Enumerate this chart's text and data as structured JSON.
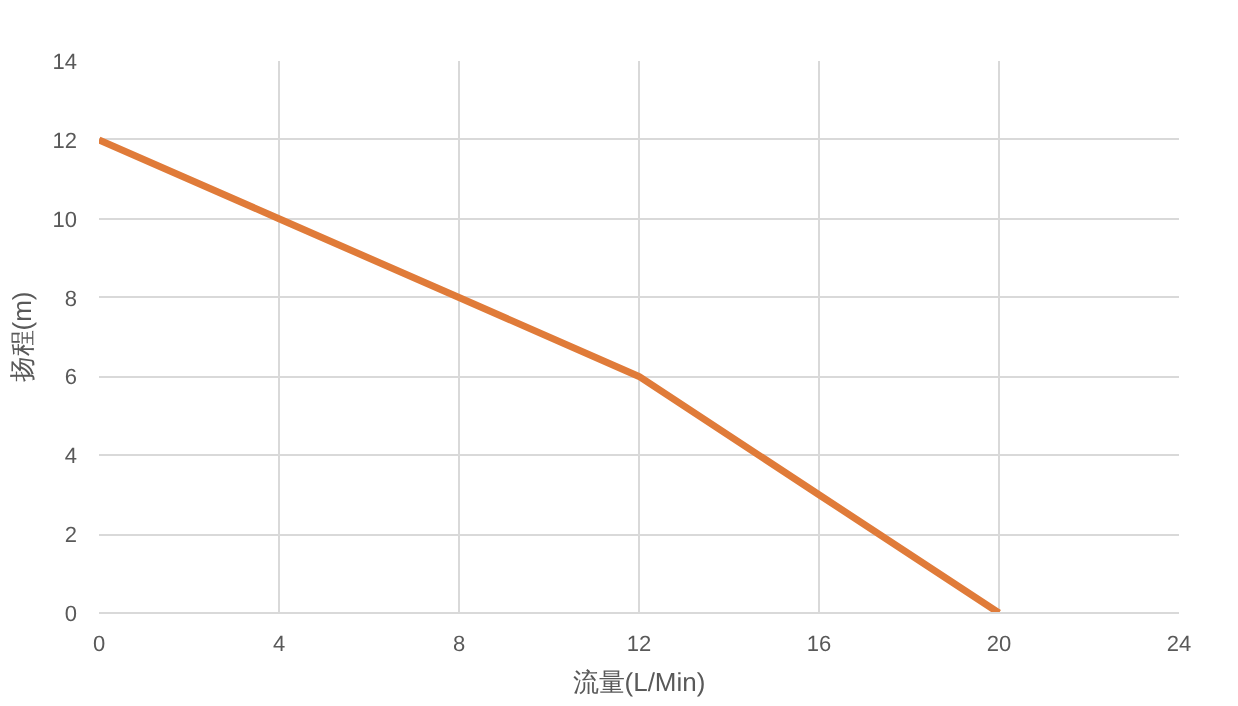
{
  "chart_data": {
    "type": "line",
    "xlabel": "流量(L/Min)",
    "ylabel": "扬程(m)",
    "x": [
      0,
      4,
      8,
      12,
      16,
      20
    ],
    "series": [
      {
        "color": "#e07b39",
        "values": [
          12,
          10,
          8,
          6,
          3,
          0
        ]
      }
    ],
    "xlim": [
      0,
      24
    ],
    "xticks": [
      0,
      4,
      8,
      12,
      16,
      20,
      24
    ],
    "ylim": [
      0,
      14
    ],
    "yticks": [
      0,
      2,
      4,
      6,
      8,
      10,
      12,
      14
    ],
    "grid": true,
    "marker": "none",
    "line_style": "solid"
  }
}
